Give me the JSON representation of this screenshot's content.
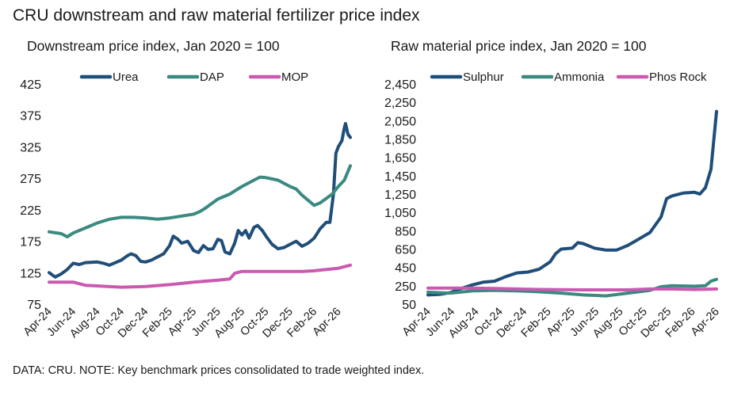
{
  "title": "CRU downstream and raw material fertilizer price index",
  "footnote": "DATA: CRU. NOTE: Key benchmark prices consolidated to trade weighted index.",
  "chart_data": [
    {
      "type": "line",
      "title": "Downstream price index, Jan 2020 = 100",
      "xlabel": "",
      "ylabel": "",
      "legend_position": "top",
      "grid": false,
      "ylim": [
        75,
        425
      ],
      "y_ticks": [
        "75",
        "125",
        "175",
        "225",
        "275",
        "325",
        "375",
        "425"
      ],
      "x_ticks": [
        "Apr-24",
        "Jun-24",
        "Aug-24",
        "Oct-24",
        "Dec-24",
        "Feb-25",
        "Apr-25",
        "Jun-25",
        "Aug-25",
        "Oct-25",
        "Dec-25",
        "Feb-26",
        "Apr-26"
      ],
      "xlim": [
        0,
        25
      ],
      "series": [
        {
          "name": "Urea",
          "color": "#1f4e79",
          "points": [
            [
              0,
              125
            ],
            [
              0.5,
              118
            ],
            [
              1,
              123
            ],
            [
              1.5,
              130
            ],
            [
              2,
              140
            ],
            [
              2.5,
              138
            ],
            [
              3,
              141
            ],
            [
              4,
              142
            ],
            [
              4.5,
              140
            ],
            [
              5,
              137
            ],
            [
              6,
              145
            ],
            [
              6.5,
              152
            ],
            [
              6.8,
              155
            ],
            [
              7.2,
              152
            ],
            [
              7.6,
              143
            ],
            [
              8,
              142
            ],
            [
              8.5,
              145
            ],
            [
              9,
              150
            ],
            [
              9.5,
              155
            ],
            [
              10,
              168
            ],
            [
              10.3,
              183
            ],
            [
              10.7,
              178
            ],
            [
              11,
              172
            ],
            [
              11.5,
              175
            ],
            [
              12,
              160
            ],
            [
              12.4,
              157
            ],
            [
              12.8,
              168
            ],
            [
              13.2,
              162
            ],
            [
              13.6,
              163
            ],
            [
              14,
              178
            ],
            [
              14.3,
              176
            ],
            [
              14.6,
              158
            ],
            [
              15,
              155
            ],
            [
              15.4,
              172
            ],
            [
              15.7,
              192
            ],
            [
              16,
              185
            ],
            [
              16.3,
              192
            ],
            [
              16.6,
              180
            ],
            [
              17,
              197
            ],
            [
              17.3,
              200
            ],
            [
              17.7,
              192
            ],
            [
              18,
              183
            ],
            [
              18.5,
              170
            ],
            [
              19,
              163
            ],
            [
              19.5,
              165
            ],
            [
              20,
              170
            ],
            [
              20.5,
              175
            ],
            [
              21,
              167
            ],
            [
              21.5,
              172
            ],
            [
              22,
              180
            ],
            [
              22.5,
              195
            ],
            [
              23,
              205
            ],
            [
              23.3,
              205
            ],
            [
              23.6,
              250
            ],
            [
              23.8,
              315
            ],
            [
              24,
              325
            ],
            [
              24.3,
              335
            ],
            [
              24.5,
              355
            ],
            [
              24.6,
              362
            ],
            [
              24.8,
              345
            ],
            [
              25,
              340
            ]
          ]
        },
        {
          "name": "DAP",
          "color": "#3a8a80",
          "points": [
            [
              0,
              190
            ],
            [
              1,
              187
            ],
            [
              1.5,
              182
            ],
            [
              2,
              188
            ],
            [
              3,
              196
            ],
            [
              4,
              204
            ],
            [
              5,
              210
            ],
            [
              6,
              213
            ],
            [
              7,
              213
            ],
            [
              8,
              212
            ],
            [
              9,
              210
            ],
            [
              10,
              212
            ],
            [
              11,
              215
            ],
            [
              12,
              218
            ],
            [
              12.5,
              222
            ],
            [
              13,
              228
            ],
            [
              13.5,
              235
            ],
            [
              14,
              242
            ],
            [
              15,
              250
            ],
            [
              15.5,
              256
            ],
            [
              16,
              262
            ],
            [
              16.5,
              267
            ],
            [
              17,
              272
            ],
            [
              17.5,
              277
            ],
            [
              18,
              276
            ],
            [
              19,
              272
            ],
            [
              20,
              262
            ],
            [
              20.5,
              258
            ],
            [
              21,
              248
            ],
            [
              21.5,
              240
            ],
            [
              22,
              232
            ],
            [
              22.5,
              236
            ],
            [
              23,
              243
            ],
            [
              23.5,
              250
            ],
            [
              24,
              262
            ],
            [
              24.5,
              272
            ],
            [
              25,
              295
            ]
          ]
        },
        {
          "name": "MOP",
          "color": "#c95ab0",
          "points": [
            [
              0,
              110
            ],
            [
              2,
              110
            ],
            [
              3,
              105
            ],
            [
              4,
              104
            ],
            [
              6,
              102
            ],
            [
              8,
              103
            ],
            [
              10,
              106
            ],
            [
              12,
              110
            ],
            [
              14,
              113
            ],
            [
              15,
              115
            ],
            [
              15.4,
              124
            ],
            [
              16,
              127
            ],
            [
              18,
              127
            ],
            [
              20,
              127
            ],
            [
              21,
              127
            ],
            [
              22,
              128
            ],
            [
              23,
              130
            ],
            [
              24,
              132
            ],
            [
              25,
              137
            ]
          ]
        }
      ]
    },
    {
      "type": "line",
      "title": "Raw material price index, Jan 2020 = 100",
      "xlabel": "",
      "ylabel": "",
      "legend_position": "top",
      "grid": false,
      "ylim": [
        50,
        2450
      ],
      "y_ticks": [
        "50",
        "250",
        "450",
        "650",
        "850",
        "1,050",
        "1,250",
        "1,450",
        "1,650",
        "1,850",
        "2,050",
        "2,250",
        "2,450"
      ],
      "x_ticks": [
        "Apr-24",
        "Jun-24",
        "Aug-24",
        "Oct-24",
        "Dec-24",
        "Feb-25",
        "Apr-25",
        "Jun-25",
        "Aug-25",
        "Oct-25",
        "Dec-25",
        "Feb-26",
        "Apr-26"
      ],
      "xlim": [
        0,
        25
      ],
      "series": [
        {
          "name": "Sulphur",
          "color": "#1f4e79",
          "points": [
            [
              0,
              150
            ],
            [
              1,
              155
            ],
            [
              2,
              175
            ],
            [
              3,
              220
            ],
            [
              4,
              260
            ],
            [
              5,
              290
            ],
            [
              6,
              300
            ],
            [
              7,
              350
            ],
            [
              8,
              390
            ],
            [
              9,
              400
            ],
            [
              10,
              430
            ],
            [
              11,
              510
            ],
            [
              11.5,
              600
            ],
            [
              12,
              650
            ],
            [
              13,
              660
            ],
            [
              13.5,
              720
            ],
            [
              14,
              710
            ],
            [
              15,
              660
            ],
            [
              16,
              640
            ],
            [
              17,
              640
            ],
            [
              18,
              690
            ],
            [
              19,
              760
            ],
            [
              20,
              830
            ],
            [
              21,
              1000
            ],
            [
              21.5,
              1200
            ],
            [
              22,
              1230
            ],
            [
              23,
              1260
            ],
            [
              24,
              1270
            ],
            [
              24.5,
              1250
            ],
            [
              25,
              1320
            ],
            [
              25.5,
              1520
            ],
            [
              26,
              2150
            ]
          ]
        },
        {
          "name": "Ammonia",
          "color": "#3a8a80",
          "points": [
            [
              0,
              180
            ],
            [
              2,
              170
            ],
            [
              4,
              195
            ],
            [
              6,
              200
            ],
            [
              8,
              195
            ],
            [
              10,
              185
            ],
            [
              12,
              170
            ],
            [
              14,
              150
            ],
            [
              16,
              140
            ],
            [
              18,
              170
            ],
            [
              20,
              200
            ],
            [
              21,
              240
            ],
            [
              22,
              250
            ],
            [
              24,
              245
            ],
            [
              25,
              250
            ],
            [
              25.5,
              300
            ],
            [
              26,
              320
            ]
          ]
        },
        {
          "name": "Phos Rock",
          "color": "#c95ab0",
          "points": [
            [
              0,
              225
            ],
            [
              4,
              225
            ],
            [
              6,
              220
            ],
            [
              8,
              215
            ],
            [
              10,
              210
            ],
            [
              14,
              205
            ],
            [
              18,
              205
            ],
            [
              20,
              215
            ],
            [
              22,
              215
            ],
            [
              24,
              210
            ],
            [
              26,
              215
            ]
          ]
        }
      ]
    }
  ]
}
